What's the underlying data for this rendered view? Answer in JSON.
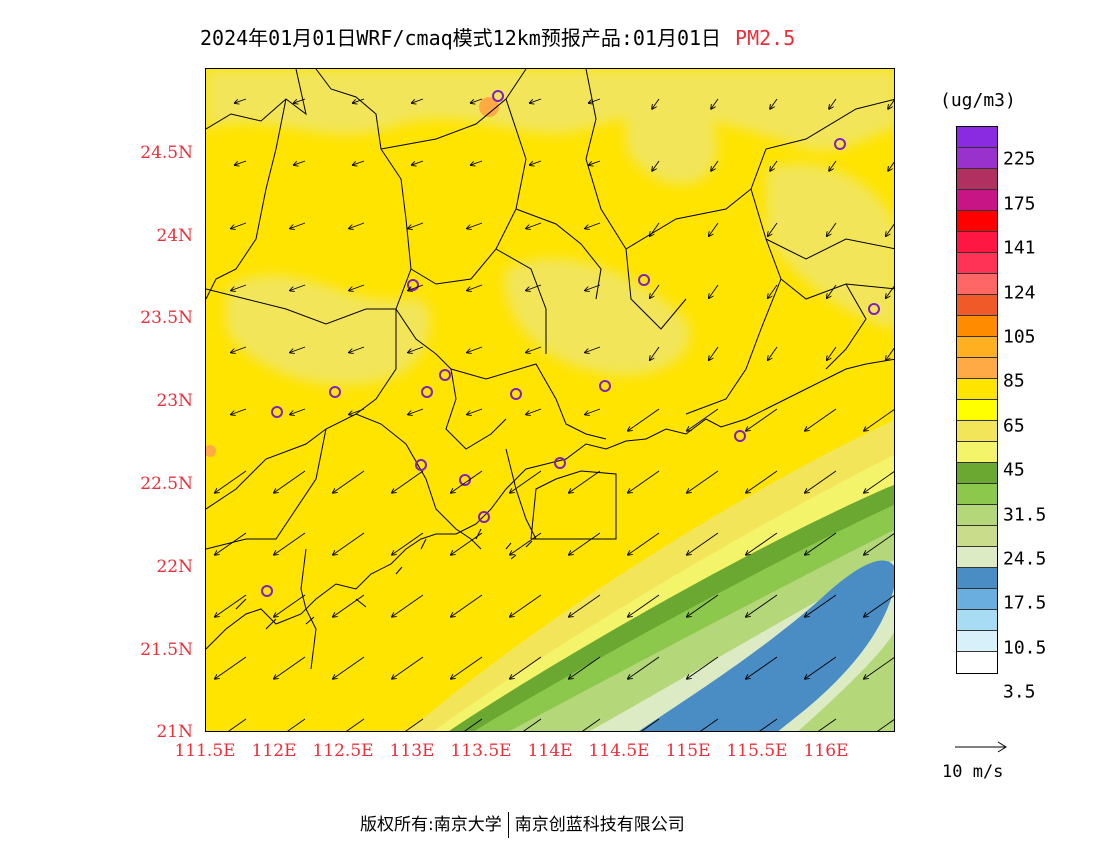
{
  "header": {
    "title": "2024年01月01日WRF/cmaq模式12km预报产品:01月01日",
    "pollutant": "PM2.5"
  },
  "map": {
    "lat_labels": [
      "24.5N",
      "24N",
      "23.5N",
      "23N",
      "22.5N",
      "22N",
      "21.5N",
      "21N"
    ],
    "lat_values": [
      24.5,
      24,
      23.5,
      23,
      22.5,
      22,
      21.5,
      21
    ],
    "lon_labels": [
      "111.5E",
      "112E",
      "112.5E",
      "113E",
      "113.5E",
      "114E",
      "114.5E",
      "115E",
      "115.5E",
      "116E"
    ],
    "lon_values": [
      111.5,
      112,
      112.5,
      113,
      113.5,
      114,
      114.5,
      115,
      115.5,
      116
    ],
    "extent": {
      "lon_min": 111.5,
      "lon_max": 116.5,
      "lat_min": 21,
      "lat_max": 25
    },
    "station_marker_color": "#8020c0",
    "boundary_color": "#000000",
    "wind_arrow_color": "#000000"
  },
  "legend": {
    "unit": "(ug/m3)",
    "colors": [
      "#8a2be2",
      "#9932cc",
      "#b03060",
      "#c71585",
      "#ff0000",
      "#ff1744",
      "#ff3355",
      "#ff6666",
      "#f05a28",
      "#ff8c00",
      "#ffb020",
      "#ffaa44",
      "#ffe400",
      "#ffff00",
      "#f2e55a",
      "#f4f46a",
      "#6aa832",
      "#8cc84b",
      "#b4d77a",
      "#c8dc8c",
      "#dcebc3",
      "#4a8cc4",
      "#6aaee0",
      "#a8dcf4",
      "#d8f0fa",
      "#ffffff"
    ],
    "labels": [
      "225",
      "175",
      "141",
      "124",
      "105",
      "85",
      "65",
      "45",
      "31.5",
      "24.5",
      "17.5",
      "10.5",
      "3.5"
    ]
  },
  "reference_vector": {
    "label": "10 m/s"
  },
  "footer": {
    "left": "版权所有:南京大学",
    "right": "南京创蓝科技有限公司"
  }
}
